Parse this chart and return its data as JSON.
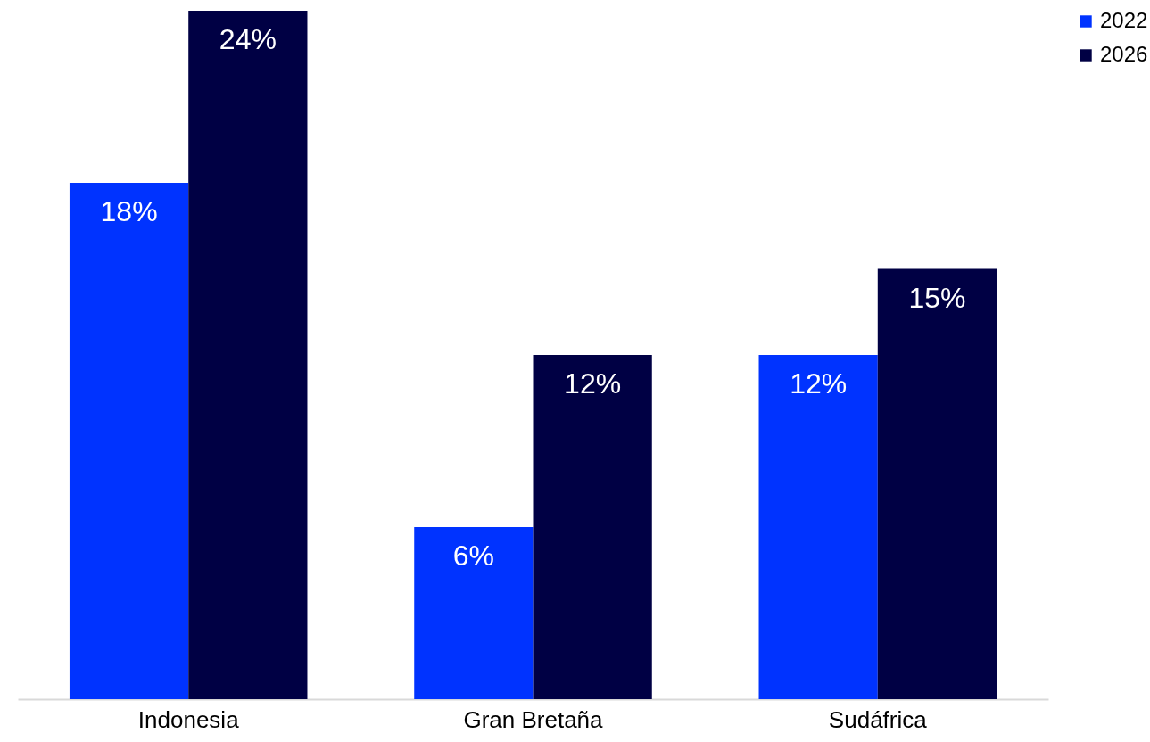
{
  "chart_data": {
    "type": "bar",
    "categories": [
      "Indonesia",
      "Gran Bretaña",
      "Sudáfrica"
    ],
    "series": [
      {
        "name": "2022",
        "color": "#0033ff",
        "values": [
          18,
          6,
          12
        ],
        "value_labels": [
          "18%",
          "6%",
          "12%"
        ]
      },
      {
        "name": "2026",
        "color": "#000044",
        "values": [
          24,
          12,
          15
        ],
        "value_labels": [
          "24%",
          "12%",
          "15%"
        ]
      }
    ],
    "ylim": [
      0,
      24
    ],
    "tick_labels": "x",
    "grid": false,
    "legend": "right"
  }
}
